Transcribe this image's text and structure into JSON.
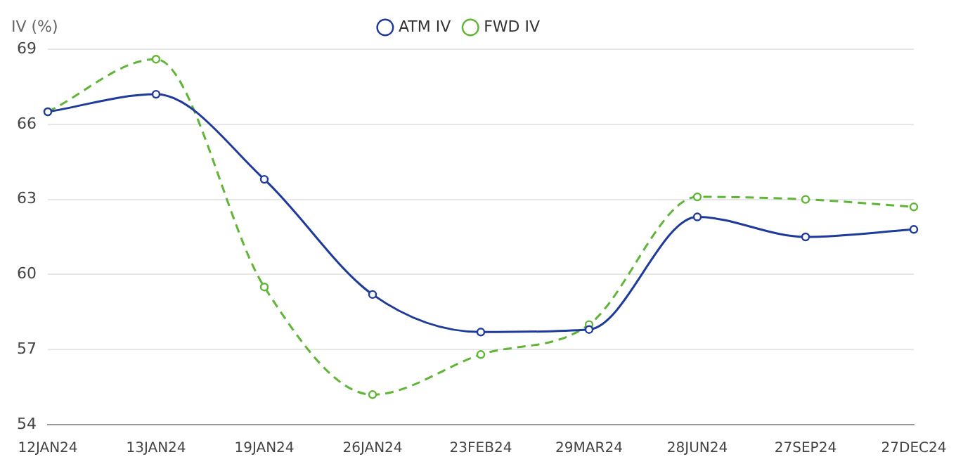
{
  "chart_data": {
    "type": "line",
    "ylabel": "IV (%)",
    "categories": [
      "12JAN24",
      "13JAN24",
      "19JAN24",
      "26JAN24",
      "23FEB24",
      "29MAR24",
      "28JUN24",
      "27SEP24",
      "27DEC24"
    ],
    "series": [
      {
        "name": "ATM IV",
        "color": "#1e3a9a",
        "line_style": "solid",
        "values": [
          66.5,
          67.2,
          63.8,
          59.2,
          57.7,
          57.8,
          62.3,
          61.5,
          61.8
        ]
      },
      {
        "name": "FWD IV",
        "color": "#5fb536",
        "line_style": "dashed",
        "values": [
          66.5,
          68.6,
          59.5,
          55.2,
          56.8,
          58.0,
          63.1,
          63.0,
          62.7
        ]
      }
    ],
    "ylim": [
      54,
      69
    ],
    "yticks": [
      54,
      57,
      60,
      63,
      66,
      69
    ],
    "grid": "y",
    "legend": "top",
    "marker": "circle"
  }
}
